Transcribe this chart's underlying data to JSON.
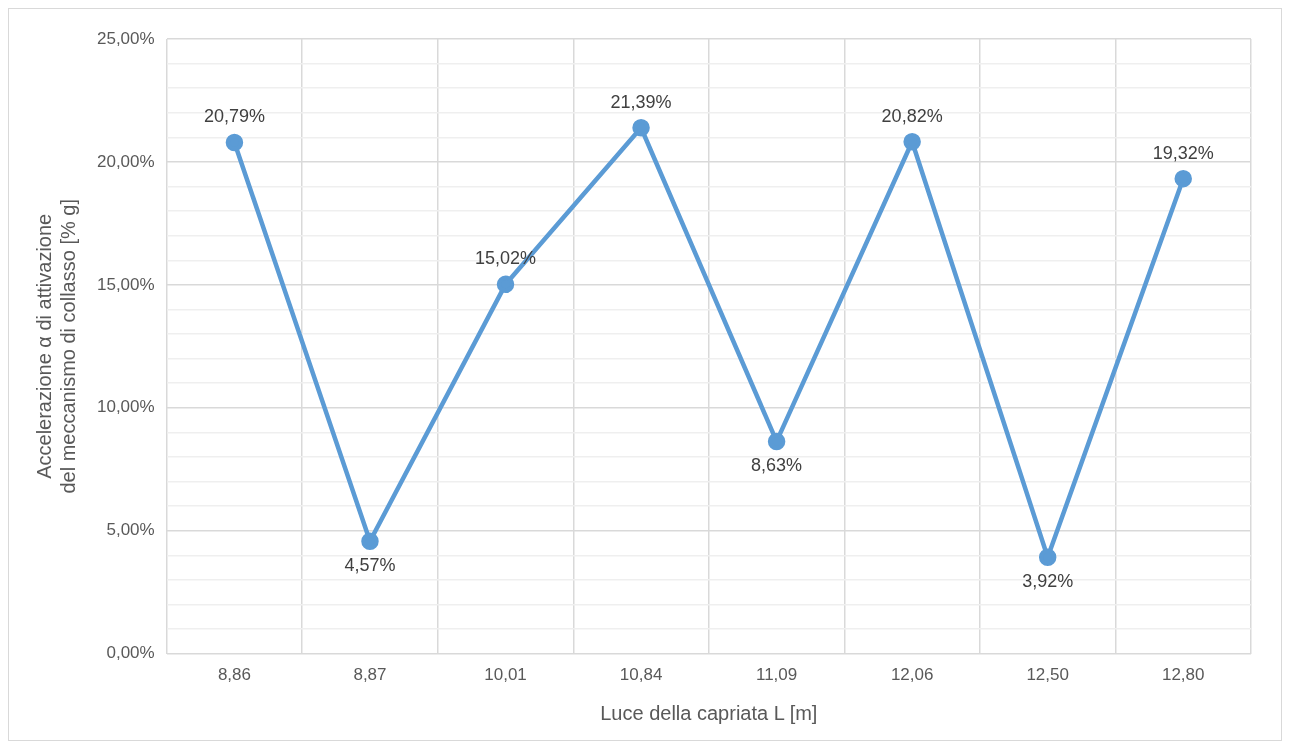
{
  "chart_data": {
    "type": "line",
    "xlabel": "Luce della capriata L [m]",
    "ylabel": "Accelerazione α di attivazione\ndel meccanismo di collasso [% g]",
    "categories": [
      "8,86",
      "8,87",
      "10,01",
      "10,84",
      "11,09",
      "12,06",
      "12,50",
      "12,80"
    ],
    "series": [
      {
        "color": "#5b9bd5",
        "values": [
          20.79,
          4.57,
          15.02,
          21.39,
          8.63,
          20.82,
          3.92,
          19.32
        ],
        "value_labels": [
          "20,79%",
          "4,57%",
          "15,02%",
          "21,39%",
          "8,63%",
          "20,82%",
          "3,92%",
          "19,32%"
        ]
      }
    ],
    "ylim": [
      0,
      25
    ],
    "yticks": [
      {
        "value": 0,
        "label": "0,00%"
      },
      {
        "value": 1,
        "label": null
      },
      {
        "value": 2,
        "label": null
      },
      {
        "value": 3,
        "label": null
      },
      {
        "value": 4,
        "label": null
      },
      {
        "value": 5,
        "label": "5,00%"
      },
      {
        "value": 6,
        "label": null
      },
      {
        "value": 7,
        "label": null
      },
      {
        "value": 8,
        "label": null
      },
      {
        "value": 9,
        "label": null
      },
      {
        "value": 10,
        "label": "10,00%"
      },
      {
        "value": 11,
        "label": null
      },
      {
        "value": 12,
        "label": null
      },
      {
        "value": 13,
        "label": null
      },
      {
        "value": 14,
        "label": null
      },
      {
        "value": 15,
        "label": "15,00%"
      },
      {
        "value": 16,
        "label": null
      },
      {
        "value": 17,
        "label": null
      },
      {
        "value": 18,
        "label": null
      },
      {
        "value": 19,
        "label": null
      },
      {
        "value": 20,
        "label": "20,00%"
      },
      {
        "value": 21,
        "label": null
      },
      {
        "value": 22,
        "label": null
      },
      {
        "value": 23,
        "label": null
      },
      {
        "value": 24,
        "label": null
      },
      {
        "value": 25,
        "label": "25,00%"
      }
    ],
    "grid": true,
    "legend": false,
    "marker": "circle",
    "line_style": "solid"
  }
}
